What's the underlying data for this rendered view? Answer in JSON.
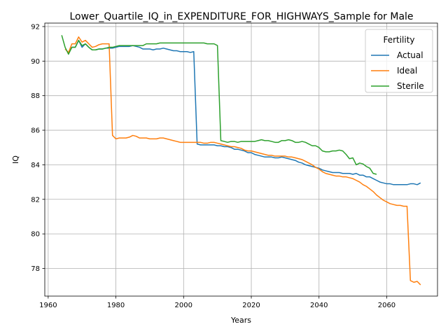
{
  "chart_data": {
    "type": "line",
    "title": "Lower_Quartile_IQ_in_EXPENDITURE_FOR_HIGHWAYS_Sample for Male",
    "xlabel": "Years",
    "ylabel": "IQ",
    "xlim": [
      1959,
      2075
    ],
    "ylim": [
      76.4,
      92.2
    ],
    "xticks": [
      1960,
      1980,
      2000,
      2020,
      2040,
      2060
    ],
    "yticks": [
      78,
      80,
      82,
      84,
      86,
      88,
      90,
      92
    ],
    "grid": true,
    "legend": {
      "title": "Fertility",
      "position": "upper right"
    },
    "series": [
      {
        "name": "Actual",
        "color": "#1f77b4",
        "x": [
          1966,
          1967,
          1968,
          1969,
          1970,
          1971,
          1972,
          1973,
          1974,
          1975,
          1976,
          1977,
          1978,
          1979,
          1980,
          1981,
          1982,
          1983,
          1984,
          1985,
          1986,
          1987,
          1988,
          1989,
          1990,
          1991,
          1992,
          1993,
          1994,
          1995,
          1996,
          1997,
          1998,
          1999,
          2000,
          2001,
          2002,
          2003,
          2004,
          2005,
          2006,
          2007,
          2008,
          2009,
          2010,
          2011,
          2012,
          2013,
          2014,
          2015,
          2016,
          2017,
          2018,
          2019,
          2020,
          2021,
          2022,
          2023,
          2024,
          2025,
          2026,
          2027,
          2028,
          2029,
          2030,
          2031,
          2032,
          2033,
          2034,
          2035,
          2036,
          2037,
          2038,
          2039,
          2040,
          2041,
          2042,
          2043,
          2044,
          2045,
          2046,
          2047,
          2048,
          2049,
          2050,
          2051,
          2052,
          2053,
          2054,
          2055,
          2056,
          2057,
          2058,
          2059,
          2060,
          2061,
          2062,
          2063,
          2064,
          2065,
          2066,
          2067,
          2068,
          2069,
          2070
        ],
        "y": [
          90.5,
          90.8,
          90.8,
          91.2,
          90.8,
          91.0,
          90.8,
          90.65,
          90.65,
          90.7,
          90.7,
          90.75,
          90.75,
          90.75,
          90.8,
          90.85,
          90.85,
          90.85,
          90.85,
          90.9,
          90.85,
          90.8,
          90.7,
          90.7,
          90.7,
          90.65,
          90.7,
          90.7,
          90.75,
          90.7,
          90.65,
          90.6,
          90.6,
          90.55,
          90.55,
          90.55,
          90.5,
          90.55,
          85.2,
          85.15,
          85.15,
          85.15,
          85.15,
          85.15,
          85.1,
          85.1,
          85.05,
          85.05,
          85.0,
          84.9,
          84.9,
          84.85,
          84.8,
          84.7,
          84.7,
          84.6,
          84.55,
          84.5,
          84.45,
          84.45,
          84.45,
          84.4,
          84.4,
          84.45,
          84.4,
          84.35,
          84.3,
          84.25,
          84.15,
          84.1,
          84.0,
          83.95,
          83.9,
          83.85,
          83.8,
          83.7,
          83.65,
          83.6,
          83.55,
          83.55,
          83.55,
          83.5,
          83.5,
          83.5,
          83.45,
          83.5,
          83.4,
          83.4,
          83.3,
          83.3,
          83.2,
          83.1,
          83.0,
          82.95,
          82.9,
          82.9,
          82.85,
          82.85,
          82.85,
          82.85,
          82.85,
          82.9,
          82.9,
          82.85,
          82.95
        ]
      },
      {
        "name": "Ideal",
        "color": "#ff7f0e",
        "x": [
          1965,
          1966,
          1967,
          1968,
          1969,
          1970,
          1971,
          1972,
          1973,
          1974,
          1975,
          1976,
          1977,
          1978,
          1979,
          1980,
          1981,
          1982,
          1983,
          1984,
          1985,
          1986,
          1987,
          1988,
          1989,
          1990,
          1991,
          1992,
          1993,
          1994,
          1995,
          1996,
          1997,
          1998,
          1999,
          2000,
          2001,
          2002,
          2003,
          2004,
          2005,
          2006,
          2007,
          2008,
          2009,
          2010,
          2011,
          2012,
          2013,
          2014,
          2015,
          2016,
          2017,
          2018,
          2019,
          2020,
          2021,
          2022,
          2023,
          2024,
          2025,
          2026,
          2027,
          2028,
          2029,
          2030,
          2031,
          2032,
          2033,
          2034,
          2035,
          2036,
          2037,
          2038,
          2039,
          2040,
          2041,
          2042,
          2043,
          2044,
          2045,
          2046,
          2047,
          2048,
          2049,
          2050,
          2051,
          2052,
          2053,
          2054,
          2055,
          2056,
          2057,
          2058,
          2059,
          2060,
          2061,
          2062,
          2063,
          2064,
          2065,
          2066,
          2067,
          2068,
          2069,
          2070
        ],
        "y": [
          90.7,
          90.5,
          91.0,
          91.0,
          91.4,
          91.1,
          91.2,
          91.0,
          90.8,
          90.85,
          90.95,
          91.0,
          91.0,
          91.0,
          85.7,
          85.5,
          85.55,
          85.55,
          85.55,
          85.6,
          85.7,
          85.65,
          85.55,
          85.55,
          85.55,
          85.5,
          85.5,
          85.5,
          85.55,
          85.55,
          85.5,
          85.45,
          85.4,
          85.35,
          85.3,
          85.3,
          85.3,
          85.3,
          85.3,
          85.3,
          85.3,
          85.25,
          85.25,
          85.3,
          85.3,
          85.25,
          85.2,
          85.15,
          85.1,
          85.05,
          85.05,
          85.0,
          84.95,
          84.85,
          84.8,
          84.8,
          84.75,
          84.7,
          84.65,
          84.6,
          84.55,
          84.55,
          84.5,
          84.5,
          84.5,
          84.5,
          84.45,
          84.45,
          84.4,
          84.35,
          84.3,
          84.2,
          84.1,
          84.0,
          83.85,
          83.75,
          83.6,
          83.5,
          83.45,
          83.4,
          83.35,
          83.35,
          83.3,
          83.3,
          83.25,
          83.2,
          83.1,
          83.0,
          82.85,
          82.75,
          82.6,
          82.45,
          82.25,
          82.1,
          81.95,
          81.85,
          81.75,
          81.7,
          81.65,
          81.65,
          81.6,
          81.6,
          77.3,
          77.2,
          77.25,
          77.05
        ]
      },
      {
        "name": "Sterile",
        "color": "#2ca02c",
        "x": [
          1964,
          1965,
          1966,
          1967,
          1968,
          1969,
          1970,
          1971,
          1972,
          1973,
          1974,
          1975,
          1976,
          1977,
          1978,
          1979,
          1980,
          1981,
          1982,
          1983,
          1984,
          1985,
          1986,
          1987,
          1988,
          1989,
          1990,
          1991,
          1992,
          1993,
          1994,
          1995,
          1996,
          1997,
          1998,
          1999,
          2000,
          2001,
          2002,
          2003,
          2004,
          2005,
          2006,
          2007,
          2008,
          2009,
          2010,
          2011,
          2012,
          2013,
          2014,
          2015,
          2016,
          2017,
          2018,
          2019,
          2020,
          2021,
          2022,
          2023,
          2024,
          2025,
          2026,
          2027,
          2028,
          2029,
          2030,
          2031,
          2032,
          2033,
          2034,
          2035,
          2036,
          2037,
          2038,
          2039,
          2040,
          2041,
          2042,
          2043,
          2044,
          2045,
          2046,
          2047,
          2048,
          2049,
          2050,
          2051,
          2052,
          2053,
          2054,
          2055,
          2056,
          2057
        ],
        "y": [
          91.5,
          90.8,
          90.4,
          90.8,
          90.8,
          91.2,
          90.9,
          91.0,
          90.8,
          90.65,
          90.65,
          90.7,
          90.7,
          90.75,
          90.8,
          90.8,
          90.85,
          90.9,
          90.9,
          90.9,
          90.9,
          90.9,
          90.9,
          90.9,
          90.9,
          91.0,
          91.0,
          91.0,
          91.0,
          91.05,
          91.05,
          91.05,
          91.05,
          91.05,
          91.05,
          91.05,
          91.05,
          91.05,
          91.05,
          91.05,
          91.05,
          91.05,
          91.05,
          91.0,
          91.0,
          91.0,
          90.9,
          85.4,
          85.35,
          85.3,
          85.35,
          85.35,
          85.3,
          85.35,
          85.35,
          85.35,
          85.35,
          85.35,
          85.4,
          85.45,
          85.4,
          85.4,
          85.35,
          85.3,
          85.3,
          85.4,
          85.4,
          85.45,
          85.4,
          85.3,
          85.3,
          85.35,
          85.3,
          85.2,
          85.1,
          85.1,
          85.0,
          84.8,
          84.75,
          84.75,
          84.8,
          84.8,
          84.85,
          84.8,
          84.6,
          84.35,
          84.4,
          84.0,
          84.1,
          84.05,
          83.9,
          83.8,
          83.5,
          83.45
        ]
      }
    ]
  }
}
